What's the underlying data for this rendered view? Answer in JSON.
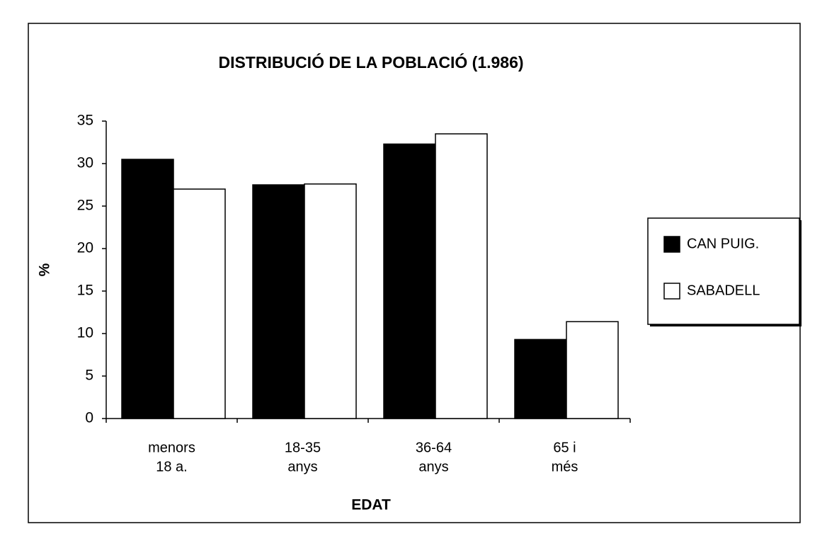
{
  "chart_data": {
    "type": "bar",
    "title": "DISTRIBUCIÓ DE LA POBLACIÓ (1.986)",
    "x_label": "EDAT",
    "y_label": "%",
    "categories": [
      [
        "menors",
        "18 a."
      ],
      [
        "18-35",
        "anys"
      ],
      [
        "36-64",
        "anys"
      ],
      [
        "65 i",
        "més"
      ]
    ],
    "series": [
      {
        "name": "CAN PUIG.",
        "color": "#000000",
        "values": [
          30.5,
          27.5,
          32.3,
          9.3
        ]
      },
      {
        "name": "SABADELL",
        "color": "#ffffff",
        "values": [
          27,
          27.6,
          33.5,
          11.4
        ]
      }
    ],
    "ylim": [
      0,
      35
    ],
    "yticks": [
      0,
      5,
      10,
      15,
      20,
      25,
      30,
      35
    ],
    "legend": "right"
  }
}
